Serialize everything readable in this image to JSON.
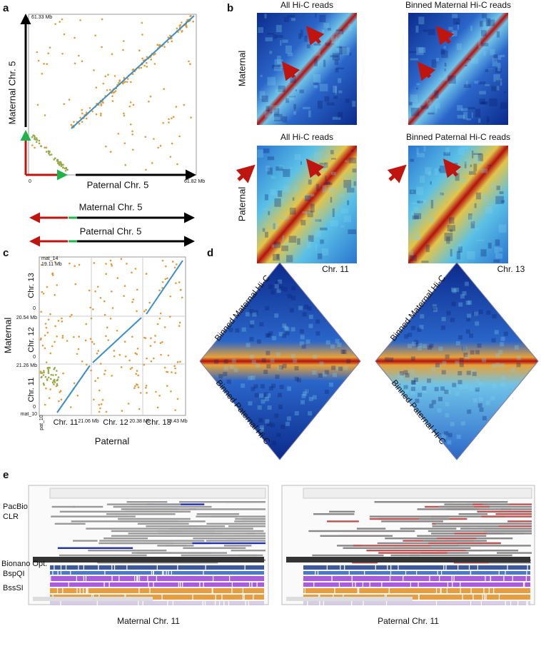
{
  "panels": {
    "a": {
      "label": "a",
      "y_top": "61.33 Mb",
      "y_label": "Maternal Chr. 5",
      "origin": "0",
      "x_end": "61.82 Mb",
      "x_label": "Paternal Chr. 5",
      "schematic": [
        "Maternal Chr. 5",
        "Paternal Chr. 5"
      ]
    },
    "b": {
      "label": "b",
      "titles": [
        "All Hi-C reads",
        "Binned Maternal Hi-C reads",
        "All Hi-C reads",
        "Binned Paternal Hi-C reads"
      ],
      "rows": [
        "Maternal",
        "Paternal"
      ]
    },
    "c": {
      "label": "c",
      "y_ticks": [
        "mat_14",
        "19.11 Mb",
        "20.54 Mb",
        "21.26 Mb",
        "mat_10"
      ],
      "y_chroms": [
        "Chr. 13",
        "Chr. 12",
        "Chr. 11"
      ],
      "zeros": [
        "0",
        "0",
        "0"
      ],
      "y_label": "Maternal",
      "x_ticks": [
        "pat_10",
        "21.06 Mb",
        "20.38 Mb",
        "19.43 Mb"
      ],
      "x_chroms": [
        "Chr. 11",
        "Chr. 12",
        "Chr. 13"
      ],
      "x_label": "Paternal"
    },
    "d": {
      "label": "d",
      "charts": [
        {
          "title": "Chr. 11",
          "top": "Binned Maternal Hi-C",
          "bottom": "Binned Paternal Hi-C"
        },
        {
          "title": "Chr. 13",
          "top": "Binned Maternal Hi-C",
          "bottom": "Binned Paternal Hi-C"
        }
      ]
    },
    "e": {
      "label": "e",
      "tracks": [
        "PacBio",
        "CLR",
        "Bionano Opt.",
        "BspQI",
        "BssSI"
      ],
      "captions": [
        "Maternal Chr. 11",
        "Paternal Chr. 11"
      ]
    }
  }
}
